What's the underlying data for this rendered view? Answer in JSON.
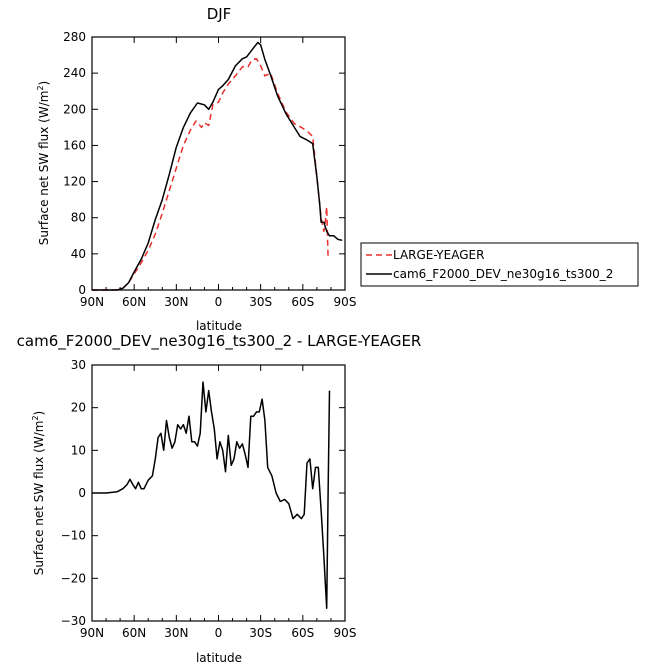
{
  "chart_data": [
    {
      "type": "line",
      "title": "DJF",
      "xlabel": "latitude",
      "ylabel": "Surface net SW flux (W/m",
      "ylabel_sup": "2",
      "ylabel_end": ")",
      "xlim": [
        90,
        -90
      ],
      "ylim": [
        0,
        280
      ],
      "xticks": [
        {
          "value": 90,
          "label": "90N"
        },
        {
          "value": 60,
          "label": "60N"
        },
        {
          "value": 30,
          "label": "30N"
        },
        {
          "value": 0,
          "label": "0"
        },
        {
          "value": -30,
          "label": "30S"
        },
        {
          "value": -60,
          "label": "60S"
        },
        {
          "value": -90,
          "label": "90S"
        }
      ],
      "yticks": [
        0,
        40,
        80,
        120,
        160,
        200,
        240,
        280
      ],
      "legend": "right",
      "series": [
        {
          "name": "LARGE-YEAGER",
          "color": "#e8312f",
          "dash": "dashed",
          "x": [
            90,
            80,
            72,
            68,
            64,
            60,
            55,
            50,
            45,
            40,
            35,
            30,
            25,
            20,
            16,
            12,
            10,
            7,
            4,
            0,
            -3,
            -7,
            -12,
            -17,
            -21,
            -24,
            -27,
            -30,
            -33,
            -37,
            -42,
            -48,
            -54,
            -59,
            -63,
            -67,
            -69,
            -71,
            -73,
            -75,
            -76,
            -77,
            -78
          ],
          "y": [
            0,
            0,
            0,
            2,
            8,
            18,
            30,
            44,
            62,
            85,
            110,
            135,
            160,
            177,
            187,
            180,
            185,
            182,
            205,
            208,
            218,
            228,
            237,
            247,
            247,
            255,
            256,
            248,
            237,
            240,
            218,
            197,
            184,
            180,
            176,
            170,
            140,
            110,
            80,
            65,
            75,
            92,
            35
          ]
        },
        {
          "name": "cam6_F2000_DEV_ne30g16_ts300_2",
          "color": "#000000",
          "dash": "solid",
          "x": [
            90,
            80,
            72,
            68,
            64,
            60,
            55,
            50,
            45,
            40,
            35,
            30,
            25,
            20,
            15,
            10,
            7,
            4,
            0,
            -3,
            -7,
            -12,
            -17,
            -20,
            -25,
            -28,
            -30,
            -33,
            -37,
            -42,
            -48,
            -54,
            -58,
            -63,
            -67,
            -70,
            -72,
            -73,
            -75,
            -77,
            -79,
            -82,
            -85,
            -88
          ],
          "y": [
            0,
            0,
            0,
            2,
            8,
            20,
            34,
            52,
            78,
            100,
            128,
            158,
            180,
            196,
            207,
            205,
            200,
            208,
            222,
            226,
            233,
            248,
            256,
            258,
            268,
            274,
            271,
            255,
            238,
            215,
            195,
            180,
            170,
            166,
            162,
            125,
            95,
            75,
            75,
            65,
            60,
            60,
            56,
            55
          ]
        }
      ]
    },
    {
      "type": "line",
      "title": "cam6_F2000_DEV_ne30g16_ts300_2 - LARGE-YEAGER",
      "xlabel": "latitude",
      "ylabel": "Surface net SW flux (W/m",
      "ylabel_sup": "2",
      "ylabel_end": ")",
      "xlim": [
        90,
        -90
      ],
      "ylim": [
        -30,
        30
      ],
      "xticks": [
        {
          "value": 90,
          "label": "90N"
        },
        {
          "value": 60,
          "label": "60N"
        },
        {
          "value": 30,
          "label": "30N"
        },
        {
          "value": 0,
          "label": "0"
        },
        {
          "value": -30,
          "label": "30S"
        },
        {
          "value": -60,
          "label": "60S"
        },
        {
          "value": -90,
          "label": "90S"
        }
      ],
      "yticks": [
        -30,
        -20,
        -10,
        0,
        10,
        20,
        30
      ],
      "legend": "none",
      "series": [
        {
          "name": "",
          "color": "#000000",
          "dash": "solid",
          "x": [
            90,
            80,
            72,
            68,
            65,
            63,
            61,
            59,
            57,
            55,
            53,
            50,
            47,
            45,
            43,
            41,
            39,
            37,
            35,
            33,
            31,
            29,
            27,
            25,
            23,
            21,
            19,
            17,
            15,
            13,
            11,
            9,
            7,
            5,
            3,
            1,
            -1,
            -3,
            -5,
            -7,
            -9,
            -11,
            -13,
            -15,
            -17,
            -19,
            -21,
            -23,
            -25,
            -27,
            -29,
            -31,
            -33,
            -35,
            -38,
            -41,
            -44,
            -47,
            -50,
            -53,
            -56,
            -59,
            -61,
            -63,
            -65,
            -67,
            -69,
            -71,
            -73,
            -75,
            -77,
            -78,
            -79
          ],
          "y": [
            0,
            0,
            0.3,
            1,
            2,
            3.2,
            2,
            1,
            2.5,
            1,
            1,
            3,
            4,
            8,
            13,
            14,
            10,
            17,
            13,
            10.5,
            12,
            16,
            15,
            16,
            14,
            18,
            12,
            12,
            11,
            14,
            26,
            19,
            24,
            19,
            15,
            8,
            12,
            10,
            5,
            13.5,
            6.5,
            8,
            12,
            10.5,
            11.5,
            9,
            6,
            18,
            18,
            19,
            19,
            22,
            17,
            6,
            4,
            0,
            -2,
            -1.5,
            -2.5,
            -6,
            -5,
            -6,
            -5,
            7,
            8,
            1,
            6,
            6,
            -4,
            -15,
            -27,
            0,
            24
          ]
        }
      ]
    }
  ]
}
